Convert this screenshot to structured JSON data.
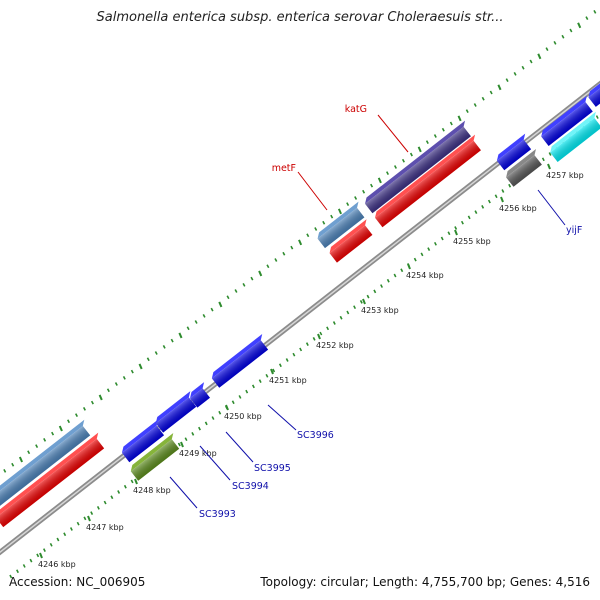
{
  "title": "Salmonella enterica subsp. enterica serovar Choleraesuis str...",
  "footer": {
    "accession": "Accession: NC_006905",
    "summary": "Topology: circular; Length: 4,755,700 bp; Genes: 4,516"
  },
  "colors": {
    "backbone": "#9a9a9a",
    "tick": "#2e8b2e",
    "label_red": "#cc0000",
    "label_blue": "#1010aa"
  },
  "ticks": [
    {
      "label": "4246 kbp"
    },
    {
      "label": "4247 kbp"
    },
    {
      "label": "4248 kbp"
    },
    {
      "label": "4249 kbp"
    },
    {
      "label": "4250 kbp"
    },
    {
      "label": "4251 kbp"
    },
    {
      "label": "4252 kbp"
    },
    {
      "label": "4253 kbp"
    },
    {
      "label": "4254 kbp"
    },
    {
      "label": "4255 kbp"
    },
    {
      "label": "4256 kbp"
    },
    {
      "label": "4257 kbp"
    }
  ],
  "gene_labels": [
    {
      "name": "katG",
      "color": "#cc0000"
    },
    {
      "name": "metF",
      "color": "#cc0000"
    },
    {
      "name": "yijF",
      "color": "#1010aa"
    },
    {
      "name": "SC3996",
      "color": "#1010aa"
    },
    {
      "name": "SC3995",
      "color": "#1010aa"
    },
    {
      "name": "SC3994",
      "color": "#1010aa"
    },
    {
      "name": "SC3993",
      "color": "#1010aa"
    }
  ]
}
